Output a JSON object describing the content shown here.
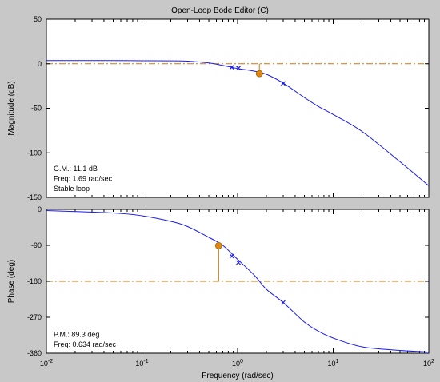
{
  "title": "Open-Loop Bode Editor (C)",
  "colors": {
    "curve": "#1a1aee",
    "margin": "#c8780a",
    "marker": "#e08a12",
    "background": "#c8c8c8"
  },
  "chart_data": [
    {
      "type": "line",
      "title": "Open-Loop Bode Editor (C)",
      "ylabel": "Magnitude (dB)",
      "xscale": "log",
      "xlim": [
        0.01,
        100
      ],
      "ylim": [
        -150,
        50
      ],
      "yticks": [
        50,
        0,
        -50,
        -100,
        -150
      ],
      "reference_line": 0,
      "series": [
        {
          "x": [
            0.01,
            0.05,
            0.1,
            0.2,
            0.3,
            0.5,
            0.7,
            1.0,
            1.5,
            2.0,
            3.0,
            5.0,
            7.0,
            10,
            20,
            50,
            100
          ],
          "y": [
            3.5,
            3.5,
            3.4,
            3.3,
            2.9,
            0.9,
            -1.9,
            -5.3,
            -8.4,
            -11.9,
            -21.7,
            -38,
            -48,
            -57,
            -76,
            -110,
            -137
          ]
        }
      ],
      "poles_zeros": [
        {
          "x": 0.87,
          "y": -4.0
        },
        {
          "x": 1.02,
          "y": -5.0
        },
        {
          "x": 3.0,
          "y": -22.0
        }
      ],
      "margin_marker": {
        "x": 1.69,
        "y": -11.1
      },
      "info": [
        "G.M.: 11.1 dB",
        "Freq: 1.69 rad/sec",
        "Stable loop"
      ]
    },
    {
      "type": "line",
      "xlabel": "Frequency (rad/sec)",
      "ylabel": "Phase (deg)",
      "xscale": "log",
      "xlim": [
        0.01,
        100
      ],
      "ylim": [
        -360,
        0
      ],
      "yticks": [
        0,
        -90,
        -180,
        -270,
        -360
      ],
      "xtick_labels": [
        "10-2",
        "10-1",
        "100",
        "101",
        "102"
      ],
      "reference_line": -180,
      "series": [
        {
          "x": [
            0.01,
            0.05,
            0.1,
            0.2,
            0.3,
            0.5,
            0.7,
            1.0,
            1.5,
            2.0,
            3.0,
            5.0,
            7.0,
            10,
            20,
            50,
            100
          ],
          "y": [
            -3,
            -9,
            -16,
            -30,
            -43,
            -70,
            -90,
            -125,
            -165,
            -200,
            -233,
            -282,
            -305,
            -322,
            -344,
            -353,
            -357
          ]
        }
      ],
      "poles_zeros": [
        {
          "x": 0.87,
          "y": -117
        },
        {
          "x": 1.02,
          "y": -133
        },
        {
          "x": 3.0,
          "y": -233
        }
      ],
      "margin_marker": {
        "x": 0.634,
        "y": -90.7
      },
      "info": [
        "P.M.: 89.3 deg",
        "Freq: 0.634 rad/sec"
      ]
    }
  ]
}
